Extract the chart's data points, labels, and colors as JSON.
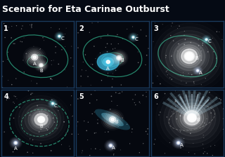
{
  "title": "Scenario for Eta Carinae Outburst",
  "title_color": "#ffffff",
  "title_fontsize": 9,
  "bg_color": "#050a14",
  "panel_bg": "#05080f",
  "border_color": "#1a3a5c",
  "panel_labels": [
    "1",
    "2",
    "3",
    "4",
    "5",
    "6"
  ],
  "orbit_color": "#2a8a6a",
  "orbit_dash_color": "#2a9a7a",
  "star_white": "#ffffff",
  "star_blue": "#4dc8e8",
  "star_small": "#88ddee",
  "star_helium": "#ccddff",
  "ray_color1": "#aae8ff",
  "ray_color2": "#cceeff"
}
